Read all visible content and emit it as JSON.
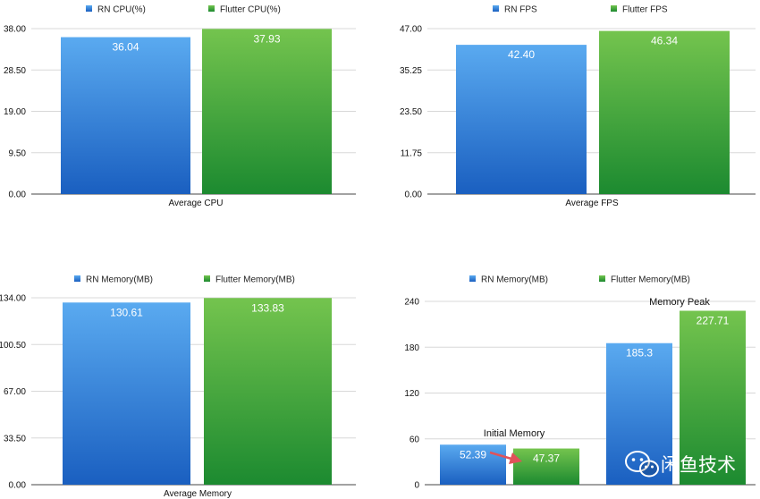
{
  "colors": {
    "rn_top": "#5aaaf0",
    "rn_bottom": "#1a5fc0",
    "flutter_top": "#74c44e",
    "flutter_bottom": "#1c8a30",
    "arrow": "#e0525a"
  },
  "watermark": {
    "icon": "wechat-icon",
    "text": "闲鱼技术"
  },
  "chart_data": [
    {
      "type": "bar",
      "categories": [
        "Average CPU"
      ],
      "series": [
        {
          "name": "RN CPU(%)",
          "values": [
            36.04
          ],
          "labels": [
            "36.04"
          ]
        },
        {
          "name": "Flutter CPU(%)",
          "values": [
            37.93
          ],
          "labels": [
            "37.93"
          ]
        }
      ],
      "ylim": [
        0,
        38
      ],
      "yticks": [
        "0.00",
        "9.50",
        "19.00",
        "28.50",
        "38.00"
      ],
      "title": "",
      "xlabel": "",
      "ylabel": ""
    },
    {
      "type": "bar",
      "categories": [
        "Average FPS"
      ],
      "series": [
        {
          "name": "RN FPS",
          "values": [
            42.4
          ],
          "labels": [
            "42.40"
          ]
        },
        {
          "name": "Flutter FPS",
          "values": [
            46.34
          ],
          "labels": [
            "46.34"
          ]
        }
      ],
      "ylim": [
        0,
        47
      ],
      "yticks": [
        "0.00",
        "11.75",
        "23.50",
        "35.25",
        "47.00"
      ],
      "title": "",
      "xlabel": "",
      "ylabel": ""
    },
    {
      "type": "bar",
      "categories": [
        "Average Memory"
      ],
      "series": [
        {
          "name": "RN Memory(MB)",
          "values": [
            130.61
          ],
          "labels": [
            "130.61"
          ]
        },
        {
          "name": "Flutter Memory(MB)",
          "values": [
            133.83
          ],
          "labels": [
            "133.83"
          ]
        }
      ],
      "ylim": [
        0,
        134
      ],
      "yticks": [
        "0.00",
        "33.50",
        "67.00",
        "100.50",
        "134.00"
      ],
      "title": "",
      "xlabel": "",
      "ylabel": ""
    },
    {
      "type": "bar",
      "categories": [
        "Initial Memory",
        "Memory Peak"
      ],
      "category_labels_position": "above",
      "annotation": "arrow from RN bar to Flutter bar in Initial Memory",
      "series": [
        {
          "name": "RN Memory(MB)",
          "values": [
            52.39,
            185.3
          ],
          "labels": [
            "52.39",
            "185.3"
          ]
        },
        {
          "name": "Flutter Memory(MB)",
          "values": [
            47.37,
            227.71
          ],
          "labels": [
            "47.37",
            "227.71"
          ]
        }
      ],
      "ylim": [
        0,
        240
      ],
      "yticks": [
        "0",
        "60",
        "120",
        "180",
        "240"
      ],
      "title": "",
      "xlabel": "",
      "ylabel": ""
    }
  ]
}
